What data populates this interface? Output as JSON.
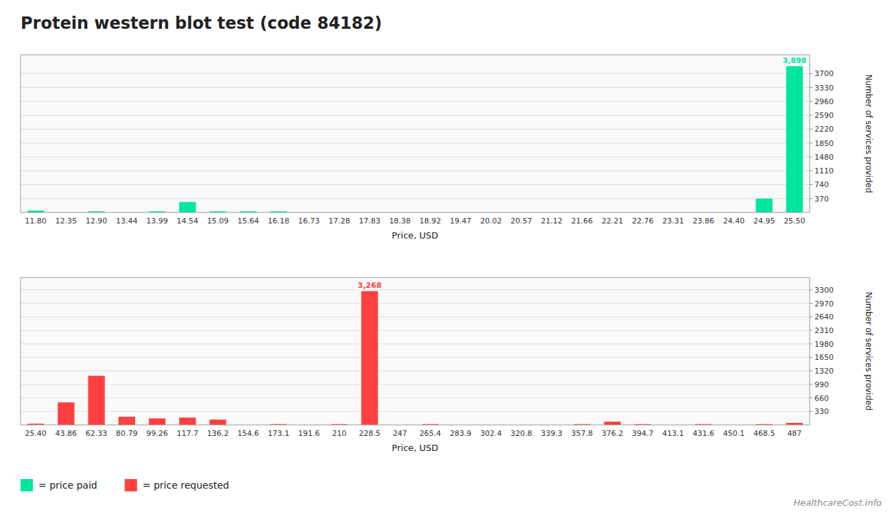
{
  "chart_data": [
    {
      "type": "bar",
      "title": "Protein western blot test (code 84182)",
      "x_label": "Price, USD",
      "y_label": "Number of services provided",
      "categories": [
        "11.80",
        "12.35",
        "12.90",
        "13.44",
        "13.99",
        "14.54",
        "15.09",
        "15.64",
        "16.18",
        "16.73",
        "17.28",
        "17.83",
        "18.38",
        "18.92",
        "19.47",
        "20.02",
        "20.57",
        "21.12",
        "21.66",
        "22.21",
        "22.76",
        "23.31",
        "23.86",
        "24.40",
        "24.95",
        "25.50"
      ],
      "series": [
        {
          "name": "= price paid",
          "color": "#00e5a0",
          "values": [
            50,
            0,
            30,
            0,
            30,
            280,
            30,
            30,
            30,
            0,
            0,
            0,
            0,
            0,
            0,
            0,
            0,
            0,
            0,
            0,
            0,
            0,
            0,
            5,
            370,
            3898
          ]
        }
      ],
      "ylim": [
        0,
        4200
      ],
      "yticks": [
        370,
        740,
        1110,
        1480,
        1850,
        2220,
        2590,
        2960,
        3330,
        3700
      ],
      "grid": true,
      "legend": "lower left",
      "annotations": [
        {
          "text": "3,898",
          "x": "25.50",
          "y": 3898
        }
      ]
    },
    {
      "type": "bar",
      "x_label": "Price, USD",
      "y_label": "Number of services provided",
      "categories": [
        "25.40",
        "43.86",
        "62.33",
        "80.79",
        "99.26",
        "117.7",
        "136.2",
        "154.6",
        "173.1",
        "191.6",
        "210",
        "228.5",
        "247",
        "265.4",
        "283.9",
        "302.4",
        "320.8",
        "339.3",
        "357.8",
        "376.2",
        "394.7",
        "413.1",
        "431.6",
        "450.1",
        "468.5",
        "487"
      ],
      "series": [
        {
          "name": "= price requested",
          "color": "#ff4040",
          "values": [
            30,
            550,
            1200,
            200,
            160,
            180,
            130,
            0,
            20,
            0,
            20,
            3268,
            0,
            20,
            0,
            0,
            0,
            0,
            20,
            80,
            20,
            0,
            20,
            0,
            20,
            50
          ]
        }
      ],
      "ylim": [
        0,
        3600
      ],
      "yticks": [
        330,
        660,
        990,
        1320,
        1650,
        1980,
        2310,
        2640,
        2970,
        3300
      ],
      "grid": true,
      "legend": "lower left",
      "annotations": [
        {
          "text": "3,268",
          "x": "228.5",
          "y": 3268
        },
        {
          "text": "HealthcareCost.info"
        }
      ]
    }
  ]
}
